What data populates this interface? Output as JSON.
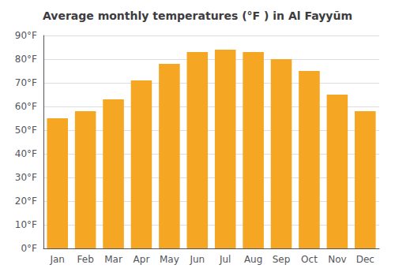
{
  "chart_data": {
    "type": "bar",
    "title": "Average monthly temperatures (°F ) in Al Fayyūm",
    "categories": [
      "Jan",
      "Feb",
      "Mar",
      "Apr",
      "May",
      "Jun",
      "Jul",
      "Aug",
      "Sep",
      "Oct",
      "Nov",
      "Dec"
    ],
    "values": [
      55,
      58,
      63,
      71,
      78,
      83,
      84,
      83,
      80,
      75,
      65,
      58
    ],
    "color": "#F5A623",
    "ylim": [
      0,
      90
    ],
    "yticks": [
      {
        "value": 0,
        "label": "0°F"
      },
      {
        "value": 10,
        "label": "10°F"
      },
      {
        "value": 20,
        "label": "20°F"
      },
      {
        "value": 30,
        "label": "30°F"
      },
      {
        "value": 40,
        "label": "40°F"
      },
      {
        "value": 50,
        "label": "50°F"
      },
      {
        "value": 60,
        "label": "60°F"
      },
      {
        "value": 70,
        "label": "70°F"
      },
      {
        "value": 80,
        "label": "80°F"
      },
      {
        "value": 90,
        "label": "90°F"
      }
    ],
    "grid": true
  }
}
